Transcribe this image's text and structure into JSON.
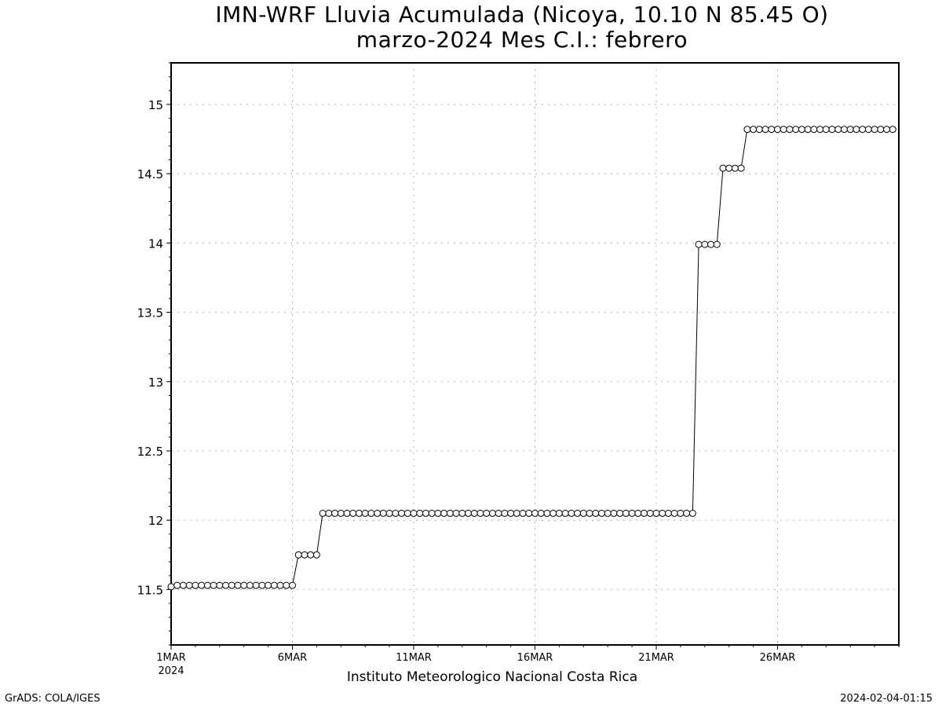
{
  "chart_data": {
    "type": "line",
    "title": "IMN-WRF  Lluvia Acumulada (Nicoya, 10.10  N 85.45  O)",
    "subtitle": "marzo-2024 Mes C.I.: febrero",
    "xlabel": "Instituto Meteorologico Nacional Costa Rica",
    "ylabel": "",
    "x_tick_labels": [
      "1MAR",
      "6MAR",
      "11MAR",
      "16MAR",
      "21MAR",
      "26MAR"
    ],
    "x_tick_days": [
      1,
      6,
      11,
      16,
      21,
      26
    ],
    "x_sub_label": "2024",
    "xlim_days": [
      1,
      31
    ],
    "ylim": [
      11.1,
      15.3
    ],
    "y_ticks": [
      11.5,
      12,
      12.5,
      13,
      13.5,
      14,
      14.5,
      15
    ],
    "y_tick_labels": [
      "11.5",
      "12",
      "12.5",
      "13",
      "13.5",
      "14",
      "14.5",
      "15"
    ],
    "grid": true,
    "marker": "open-circle",
    "time_step_hours": 6,
    "values": [
      11.52,
      11.53,
      11.53,
      11.53,
      11.53,
      11.53,
      11.53,
      11.53,
      11.53,
      11.53,
      11.53,
      11.53,
      11.53,
      11.53,
      11.53,
      11.53,
      11.53,
      11.53,
      11.53,
      11.53,
      11.53,
      11.75,
      11.75,
      11.75,
      11.75,
      12.05,
      12.05,
      12.05,
      12.05,
      12.05,
      12.05,
      12.05,
      12.05,
      12.05,
      12.05,
      12.05,
      12.05,
      12.05,
      12.05,
      12.05,
      12.05,
      12.05,
      12.05,
      12.05,
      12.05,
      12.05,
      12.05,
      12.05,
      12.05,
      12.05,
      12.05,
      12.05,
      12.05,
      12.05,
      12.05,
      12.05,
      12.05,
      12.05,
      12.05,
      12.05,
      12.05,
      12.05,
      12.05,
      12.05,
      12.05,
      12.05,
      12.05,
      12.05,
      12.05,
      12.05,
      12.05,
      12.05,
      12.05,
      12.05,
      12.05,
      12.05,
      12.05,
      12.05,
      12.05,
      12.05,
      12.05,
      12.05,
      12.05,
      12.05,
      12.05,
      12.05,
      12.05,
      13.99,
      13.99,
      13.99,
      13.99,
      14.54,
      14.54,
      14.54,
      14.54,
      14.82,
      14.82,
      14.82,
      14.82,
      14.82,
      14.82,
      14.82,
      14.82,
      14.82,
      14.82,
      14.82,
      14.82,
      14.82,
      14.82,
      14.82,
      14.82,
      14.82,
      14.82,
      14.82,
      14.82,
      14.82,
      14.82,
      14.82,
      14.82,
      14.82
    ]
  },
  "footer": {
    "left": "GrADS: COLA/IGES",
    "right": "2024-02-04-01:15"
  }
}
